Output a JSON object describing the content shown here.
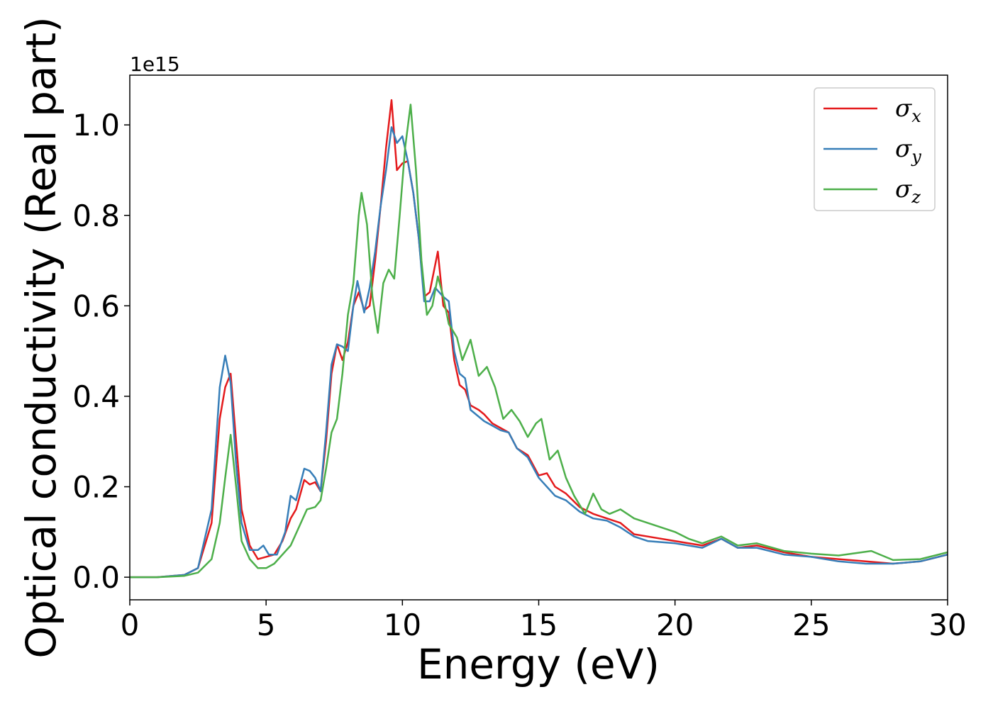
{
  "chart_data": {
    "type": "line",
    "title": "",
    "xlabel": "Energy (eV)",
    "ylabel": "Optical conductivity (Real part)",
    "y_offset_label": "1e15",
    "xlim": [
      0,
      30
    ],
    "ylim": [
      -0.05,
      1.11
    ],
    "x_ticks": [
      0,
      5,
      10,
      15,
      20,
      25,
      30
    ],
    "x_tick_labels": [
      "0",
      "5",
      "10",
      "15",
      "20",
      "25",
      "30"
    ],
    "y_ticks": [
      0.0,
      0.2,
      0.4,
      0.6,
      0.8,
      1.0
    ],
    "y_tick_labels": [
      "0.0",
      "0.2",
      "0.4",
      "0.6",
      "0.8",
      "1.0"
    ],
    "grid": false,
    "legend_position": "top-right",
    "series": [
      {
        "name": "σx",
        "symbol": "σ",
        "subscript": "x",
        "color": "#e41a1c",
        "points": [
          [
            0,
            0
          ],
          [
            1,
            0
          ],
          [
            2,
            0.005
          ],
          [
            2.5,
            0.02
          ],
          [
            3,
            0.12
          ],
          [
            3.3,
            0.35
          ],
          [
            3.5,
            0.42
          ],
          [
            3.7,
            0.45
          ],
          [
            3.9,
            0.3
          ],
          [
            4.1,
            0.15
          ],
          [
            4.4,
            0.07
          ],
          [
            4.7,
            0.04
          ],
          [
            5,
            0.045
          ],
          [
            5.3,
            0.05
          ],
          [
            5.6,
            0.08
          ],
          [
            5.9,
            0.13
          ],
          [
            6.1,
            0.15
          ],
          [
            6.4,
            0.215
          ],
          [
            6.6,
            0.205
          ],
          [
            6.8,
            0.21
          ],
          [
            7,
            0.19
          ],
          [
            7.2,
            0.3
          ],
          [
            7.4,
            0.45
          ],
          [
            7.6,
            0.515
          ],
          [
            7.8,
            0.48
          ],
          [
            8,
            0.52
          ],
          [
            8.2,
            0.6
          ],
          [
            8.4,
            0.63
          ],
          [
            8.6,
            0.59
          ],
          [
            8.8,
            0.6
          ],
          [
            9,
            0.7
          ],
          [
            9.2,
            0.82
          ],
          [
            9.4,
            0.95
          ],
          [
            9.6,
            1.055
          ],
          [
            9.8,
            0.9
          ],
          [
            10,
            0.915
          ],
          [
            10.2,
            0.92
          ],
          [
            10.4,
            0.85
          ],
          [
            10.6,
            0.75
          ],
          [
            10.8,
            0.62
          ],
          [
            11,
            0.63
          ],
          [
            11.3,
            0.72
          ],
          [
            11.5,
            0.6
          ],
          [
            11.7,
            0.585
          ],
          [
            11.9,
            0.48
          ],
          [
            12.1,
            0.425
          ],
          [
            12.3,
            0.415
          ],
          [
            12.5,
            0.38
          ],
          [
            12.8,
            0.37
          ],
          [
            13,
            0.36
          ],
          [
            13.3,
            0.34
          ],
          [
            13.6,
            0.33
          ],
          [
            13.9,
            0.32
          ],
          [
            14.2,
            0.285
          ],
          [
            14.6,
            0.27
          ],
          [
            15,
            0.225
          ],
          [
            15.3,
            0.23
          ],
          [
            15.6,
            0.2
          ],
          [
            16,
            0.185
          ],
          [
            16.5,
            0.155
          ],
          [
            17,
            0.14
          ],
          [
            17.5,
            0.13
          ],
          [
            18,
            0.12
          ],
          [
            18.5,
            0.095
          ],
          [
            19,
            0.09
          ],
          [
            20,
            0.08
          ],
          [
            21,
            0.07
          ],
          [
            21.7,
            0.085
          ],
          [
            22.3,
            0.065
          ],
          [
            23,
            0.07
          ],
          [
            24,
            0.055
          ],
          [
            25,
            0.045
          ],
          [
            26,
            0.04
          ],
          [
            27,
            0.035
          ],
          [
            28,
            0.03
          ],
          [
            29,
            0.035
          ],
          [
            30,
            0.05
          ]
        ]
      },
      {
        "name": "σy",
        "symbol": "σ",
        "subscript": "y",
        "color": "#377eb8",
        "points": [
          [
            0,
            0
          ],
          [
            1,
            0
          ],
          [
            2,
            0.005
          ],
          [
            2.5,
            0.02
          ],
          [
            3,
            0.15
          ],
          [
            3.3,
            0.42
          ],
          [
            3.5,
            0.49
          ],
          [
            3.7,
            0.43
          ],
          [
            3.9,
            0.25
          ],
          [
            4.1,
            0.12
          ],
          [
            4.4,
            0.06
          ],
          [
            4.7,
            0.06
          ],
          [
            4.9,
            0.07
          ],
          [
            5.1,
            0.05
          ],
          [
            5.4,
            0.05
          ],
          [
            5.7,
            0.1
          ],
          [
            5.9,
            0.18
          ],
          [
            6.1,
            0.17
          ],
          [
            6.4,
            0.24
          ],
          [
            6.6,
            0.235
          ],
          [
            6.8,
            0.22
          ],
          [
            7,
            0.19
          ],
          [
            7.2,
            0.32
          ],
          [
            7.4,
            0.47
          ],
          [
            7.6,
            0.515
          ],
          [
            7.8,
            0.51
          ],
          [
            8,
            0.5
          ],
          [
            8.2,
            0.6
          ],
          [
            8.35,
            0.655
          ],
          [
            8.6,
            0.585
          ],
          [
            8.8,
            0.64
          ],
          [
            9,
            0.72
          ],
          [
            9.2,
            0.82
          ],
          [
            9.4,
            0.9
          ],
          [
            9.6,
            0.995
          ],
          [
            9.8,
            0.96
          ],
          [
            10,
            0.975
          ],
          [
            10.2,
            0.92
          ],
          [
            10.4,
            0.85
          ],
          [
            10.6,
            0.75
          ],
          [
            10.8,
            0.61
          ],
          [
            11,
            0.61
          ],
          [
            11.2,
            0.64
          ],
          [
            11.5,
            0.62
          ],
          [
            11.7,
            0.61
          ],
          [
            11.9,
            0.5
          ],
          [
            12.1,
            0.45
          ],
          [
            12.3,
            0.44
          ],
          [
            12.5,
            0.37
          ],
          [
            12.8,
            0.355
          ],
          [
            13,
            0.345
          ],
          [
            13.3,
            0.335
          ],
          [
            13.6,
            0.325
          ],
          [
            13.9,
            0.32
          ],
          [
            14.2,
            0.285
          ],
          [
            14.6,
            0.265
          ],
          [
            15,
            0.22
          ],
          [
            15.3,
            0.2
          ],
          [
            15.6,
            0.18
          ],
          [
            16,
            0.17
          ],
          [
            16.5,
            0.145
          ],
          [
            17,
            0.13
          ],
          [
            17.5,
            0.125
          ],
          [
            18,
            0.11
          ],
          [
            18.5,
            0.09
          ],
          [
            19,
            0.08
          ],
          [
            20,
            0.075
          ],
          [
            21,
            0.065
          ],
          [
            21.7,
            0.085
          ],
          [
            22.3,
            0.065
          ],
          [
            23,
            0.065
          ],
          [
            24,
            0.05
          ],
          [
            25,
            0.045
          ],
          [
            26,
            0.035
          ],
          [
            27,
            0.03
          ],
          [
            28,
            0.03
          ],
          [
            29,
            0.035
          ],
          [
            30,
            0.05
          ]
        ]
      },
      {
        "name": "σz",
        "symbol": "σ",
        "subscript": "z",
        "color": "#4daf4a",
        "points": [
          [
            0,
            0
          ],
          [
            1,
            0
          ],
          [
            2,
            0.003
          ],
          [
            2.5,
            0.01
          ],
          [
            3,
            0.04
          ],
          [
            3.3,
            0.12
          ],
          [
            3.5,
            0.22
          ],
          [
            3.7,
            0.315
          ],
          [
            3.9,
            0.2
          ],
          [
            4.1,
            0.08
          ],
          [
            4.4,
            0.04
          ],
          [
            4.7,
            0.02
          ],
          [
            5,
            0.02
          ],
          [
            5.3,
            0.03
          ],
          [
            5.6,
            0.05
          ],
          [
            5.9,
            0.07
          ],
          [
            6.2,
            0.11
          ],
          [
            6.5,
            0.15
          ],
          [
            6.8,
            0.155
          ],
          [
            7,
            0.17
          ],
          [
            7.2,
            0.24
          ],
          [
            7.4,
            0.32
          ],
          [
            7.6,
            0.35
          ],
          [
            7.8,
            0.45
          ],
          [
            8,
            0.58
          ],
          [
            8.2,
            0.65
          ],
          [
            8.4,
            0.8
          ],
          [
            8.5,
            0.85
          ],
          [
            8.7,
            0.78
          ],
          [
            8.9,
            0.62
          ],
          [
            9.1,
            0.54
          ],
          [
            9.3,
            0.65
          ],
          [
            9.5,
            0.68
          ],
          [
            9.7,
            0.66
          ],
          [
            9.9,
            0.8
          ],
          [
            10.1,
            0.95
          ],
          [
            10.3,
            1.045
          ],
          [
            10.5,
            0.9
          ],
          [
            10.7,
            0.7
          ],
          [
            10.9,
            0.58
          ],
          [
            11.1,
            0.6
          ],
          [
            11.3,
            0.665
          ],
          [
            11.5,
            0.62
          ],
          [
            11.7,
            0.56
          ],
          [
            12,
            0.53
          ],
          [
            12.2,
            0.48
          ],
          [
            12.5,
            0.525
          ],
          [
            12.8,
            0.445
          ],
          [
            13.1,
            0.465
          ],
          [
            13.4,
            0.42
          ],
          [
            13.7,
            0.35
          ],
          [
            14,
            0.37
          ],
          [
            14.3,
            0.345
          ],
          [
            14.6,
            0.31
          ],
          [
            14.9,
            0.34
          ],
          [
            15.1,
            0.35
          ],
          [
            15.4,
            0.26
          ],
          [
            15.7,
            0.28
          ],
          [
            16,
            0.22
          ],
          [
            16.3,
            0.18
          ],
          [
            16.7,
            0.14
          ],
          [
            17,
            0.185
          ],
          [
            17.3,
            0.15
          ],
          [
            17.6,
            0.14
          ],
          [
            18,
            0.15
          ],
          [
            18.5,
            0.13
          ],
          [
            19,
            0.12
          ],
          [
            19.5,
            0.11
          ],
          [
            20,
            0.1
          ],
          [
            20.5,
            0.085
          ],
          [
            21,
            0.075
          ],
          [
            21.7,
            0.09
          ],
          [
            22.3,
            0.07
          ],
          [
            23,
            0.075
          ],
          [
            24,
            0.058
          ],
          [
            25,
            0.052
          ],
          [
            26,
            0.048
          ],
          [
            27.2,
            0.058
          ],
          [
            28,
            0.038
          ],
          [
            29,
            0.04
          ],
          [
            30,
            0.055
          ]
        ]
      }
    ]
  }
}
